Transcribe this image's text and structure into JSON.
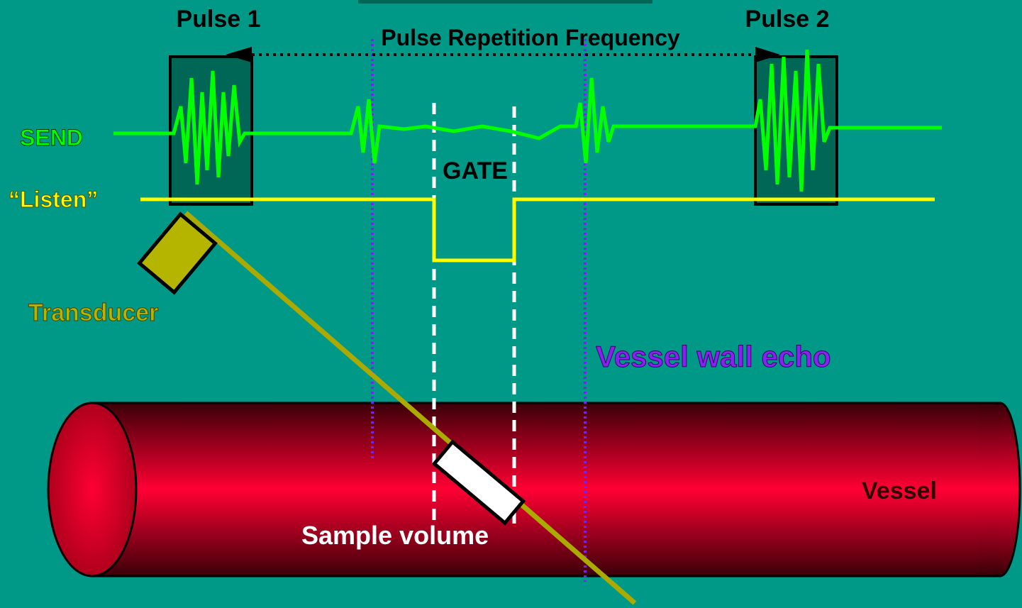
{
  "labels": {
    "pulse1": "Pulse 1",
    "pulse2": "Pulse 2",
    "prf": "Pulse Repetition Frequency",
    "send": "SEND",
    "listen": "“Listen”",
    "gate": "GATE",
    "transducer": "Transducer",
    "vessel_wall_echo": "Vessel wall echo",
    "vessel": "Vessel",
    "sample_volume": "Sample volume"
  }
}
